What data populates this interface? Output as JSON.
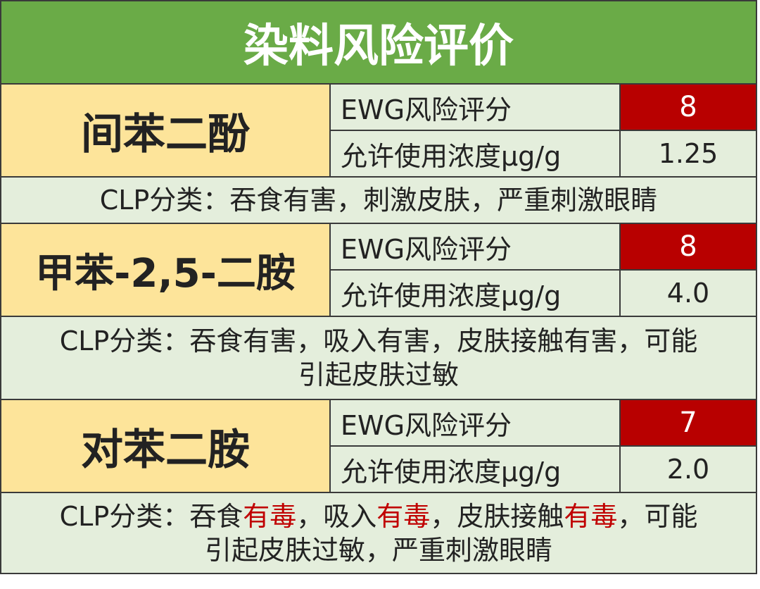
{
  "title": "染料风险评价",
  "colors": {
    "header_bg": "#6aab47",
    "name_bg": "#fde49a",
    "label_bg": "#e4eedc",
    "score_bg": "#b80000",
    "highlight_text": "#c00000"
  },
  "chemicals": [
    {
      "name": "间苯二酚",
      "ewg_label": "EWG风险评分",
      "ewg_score": "8",
      "conc_label": "允许使用浓度μg/g",
      "concentration": "1.25",
      "clp": "CLP分类：吞食有害，刺激皮肤，严重刺激眼睛"
    },
    {
      "name": "甲苯-2,5-二胺",
      "ewg_label": "EWG风险评分",
      "ewg_score": "8",
      "conc_label": "允许使用浓度μg/g",
      "concentration": "4.0",
      "clp_line1": "CLP分类：吞食有害，吸入有害，皮肤接触有害，可能",
      "clp_line2": "引起皮肤过敏"
    },
    {
      "name": "对苯二胺",
      "ewg_label": "EWG风险评分",
      "ewg_score": "7",
      "conc_label": "允许使用浓度μg/g",
      "concentration": "2.0",
      "clp_parts": [
        "CLP分类：吞食",
        "有毒",
        "，吸入",
        "有毒",
        "，皮肤接触",
        "有毒",
        "，可能"
      ],
      "clp_line2": "引起皮肤过敏，严重刺激眼睛"
    }
  ]
}
